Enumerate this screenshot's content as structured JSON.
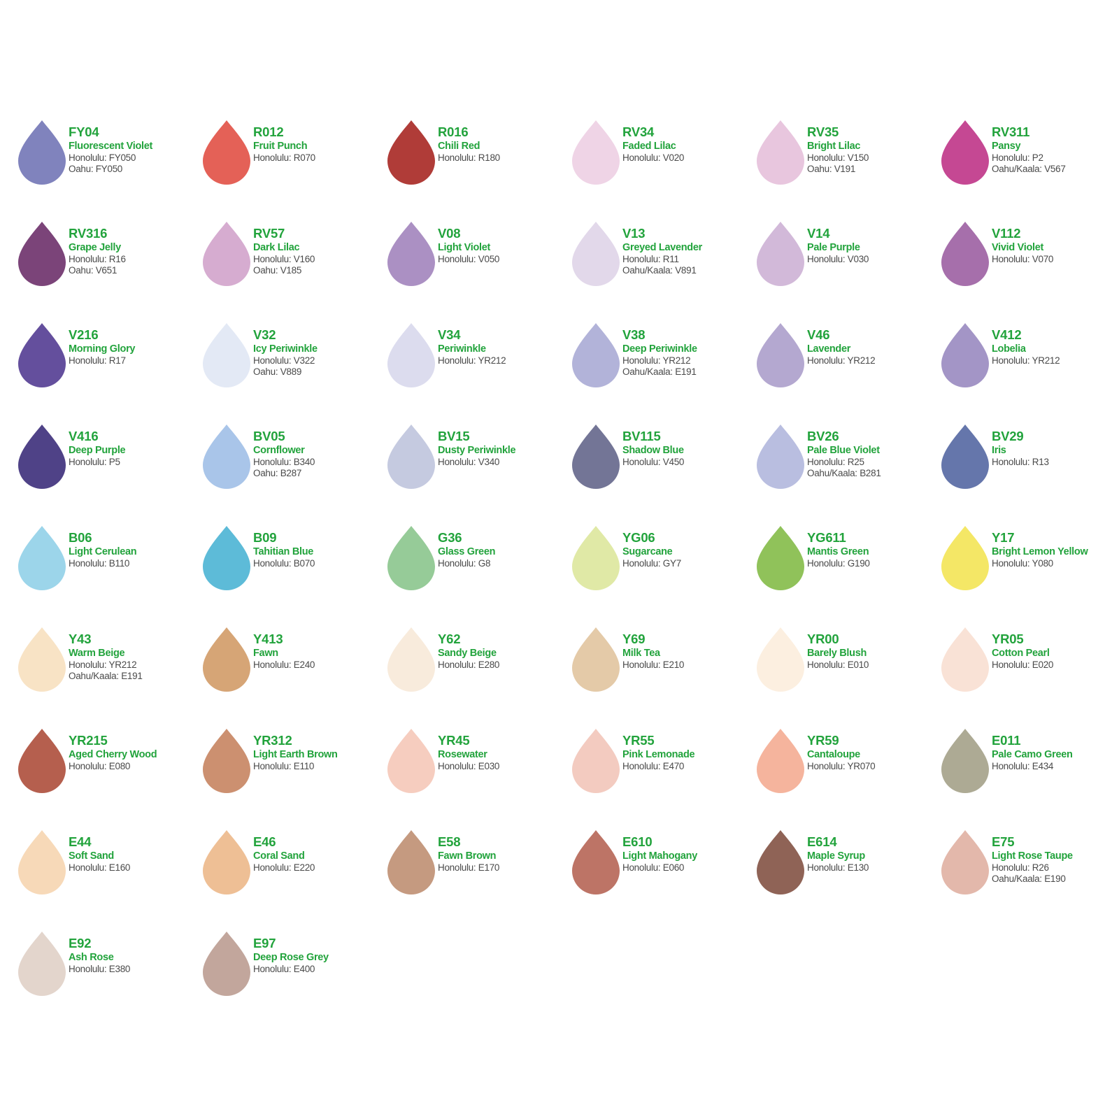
{
  "swatches": [
    {
      "code": "FY04",
      "name": "Fluorescent Violet",
      "refs": [
        "Honolulu: FY050",
        "Oahu: FY050"
      ],
      "color": "#8083bd"
    },
    {
      "code": "R012",
      "name": "Fruit Punch",
      "refs": [
        "Honolulu: R070"
      ],
      "color": "#e46157"
    },
    {
      "code": "R016",
      "name": "Chili Red",
      "refs": [
        "Honolulu: R180"
      ],
      "color": "#b03c38"
    },
    {
      "code": "RV34",
      "name": "Faded Lilac",
      "refs": [
        "Honolulu: V020"
      ],
      "color": "#efd4e6"
    },
    {
      "code": "RV35",
      "name": "Bright Lilac",
      "refs": [
        "Honolulu: V150",
        "Oahu: V191"
      ],
      "color": "#e8c6de"
    },
    {
      "code": "RV311",
      "name": "Pansy",
      "refs": [
        "Honolulu: P2",
        "Oahu/Kaala: V567"
      ],
      "color": "#c54893"
    },
    {
      "code": "RV316",
      "name": "Grape Jelly",
      "refs": [
        "Honolulu: R16",
        "Oahu: V651"
      ],
      "color": "#7b4479"
    },
    {
      "code": "RV57",
      "name": "Dark Lilac",
      "refs": [
        "Honolulu: V160",
        "Oahu: V185"
      ],
      "color": "#d6acd0"
    },
    {
      "code": "V08",
      "name": "Light Violet",
      "refs": [
        "Honolulu: V050"
      ],
      "color": "#ab90c3"
    },
    {
      "code": "V13",
      "name": "Greyed Lavender",
      "refs": [
        "Honolulu: R11",
        "Oahu/Kaala: V891"
      ],
      "color": "#e2d8ea"
    },
    {
      "code": "V14",
      "name": "Pale Purple",
      "refs": [
        "Honolulu: V030"
      ],
      "color": "#d2b9d9"
    },
    {
      "code": "V112",
      "name": "Vivid Violet",
      "refs": [
        "Honolulu: V070"
      ],
      "color": "#a66fab"
    },
    {
      "code": "V216",
      "name": "Morning Glory",
      "refs": [
        "Honolulu: R17"
      ],
      "color": "#644f9d"
    },
    {
      "code": "V32",
      "name": "Icy Periwinkle",
      "refs": [
        "Honolulu: V322",
        "Oahu: V889"
      ],
      "color": "#e3e9f5"
    },
    {
      "code": "V34",
      "name": "Periwinkle",
      "refs": [
        "Honolulu: YR212"
      ],
      "color": "#dcdcee"
    },
    {
      "code": "V38",
      "name": "Deep Periwinkle",
      "refs": [
        "Honolulu: YR212",
        "Oahu/Kaala: E191"
      ],
      "color": "#b2b3d9"
    },
    {
      "code": "V46",
      "name": "Lavender",
      "refs": [
        "Honolulu: YR212"
      ],
      "color": "#b4a8d0"
    },
    {
      "code": "V412",
      "name": "Lobelia",
      "refs": [
        "Honolulu: YR212"
      ],
      "color": "#a395c6"
    },
    {
      "code": "V416",
      "name": "Deep Purple",
      "refs": [
        "Honolulu: P5"
      ],
      "color": "#4f4287"
    },
    {
      "code": "BV05",
      "name": "Cornflower",
      "refs": [
        "Honolulu: B340",
        "Oahu: B287"
      ],
      "color": "#a9c5e9"
    },
    {
      "code": "BV15",
      "name": "Dusty Periwinkle",
      "refs": [
        "Honolulu: V340"
      ],
      "color": "#c5cae0"
    },
    {
      "code": "BV115",
      "name": "Shadow Blue",
      "refs": [
        "Honolulu: V450"
      ],
      "color": "#737596"
    },
    {
      "code": "BV26",
      "name": "Pale Blue Violet",
      "refs": [
        "Honolulu: R25",
        "Oahu/Kaala: B281"
      ],
      "color": "#b9bee0"
    },
    {
      "code": "BV29",
      "name": "Iris",
      "refs": [
        "Honolulu: R13"
      ],
      "color": "#6576ab"
    },
    {
      "code": "B06",
      "name": "Light Cerulean",
      "refs": [
        "Honolulu: B110"
      ],
      "color": "#9cd5ea"
    },
    {
      "code": "B09",
      "name": "Tahitian Blue",
      "refs": [
        "Honolulu: B070"
      ],
      "color": "#5dbbd8"
    },
    {
      "code": "G36",
      "name": "Glass Green",
      "refs": [
        "Honolulu: G8"
      ],
      "color": "#96cb98"
    },
    {
      "code": "YG06",
      "name": "Sugarcane",
      "refs": [
        "Honolulu: GY7"
      ],
      "color": "#e0e9a6"
    },
    {
      "code": "YG611",
      "name": "Mantis Green",
      "refs": [
        "Honolulu: G190"
      ],
      "color": "#90c25a"
    },
    {
      "code": "Y17",
      "name": "Bright Lemon Yellow",
      "refs": [
        "Honolulu: Y080"
      ],
      "color": "#f4e766"
    },
    {
      "code": "Y43",
      "name": "Warm Beige",
      "refs": [
        "Honolulu: YR212",
        "Oahu/Kaala: E191"
      ],
      "color": "#f8e3c5"
    },
    {
      "code": "Y413",
      "name": "Fawn",
      "refs": [
        "Honolulu: E240"
      ],
      "color": "#d6a576"
    },
    {
      "code": "Y62",
      "name": "Sandy Beige",
      "refs": [
        "Honolulu: E280"
      ],
      "color": "#f8ebdc"
    },
    {
      "code": "Y69",
      "name": "Milk Tea",
      "refs": [
        "Honolulu: E210"
      ],
      "color": "#e4caa8"
    },
    {
      "code": "YR00",
      "name": "Barely Blush",
      "refs": [
        "Honolulu: E010"
      ],
      "color": "#fcefe0"
    },
    {
      "code": "YR05",
      "name": "Cotton Pearl",
      "refs": [
        "Honolulu: E020"
      ],
      "color": "#f9e2d6"
    },
    {
      "code": "YR215",
      "name": "Aged Cherry Wood",
      "refs": [
        "Honolulu: E080"
      ],
      "color": "#b55f4e"
    },
    {
      "code": "YR312",
      "name": "Light Earth Brown",
      "refs": [
        "Honolulu: E110"
      ],
      "color": "#cc9070"
    },
    {
      "code": "YR45",
      "name": "Rosewater",
      "refs": [
        "Honolulu: E030"
      ],
      "color": "#f6cdbf"
    },
    {
      "code": "YR55",
      "name": "Pink Lemonade",
      "refs": [
        "Honolulu: E470"
      ],
      "color": "#f3cbc0"
    },
    {
      "code": "YR59",
      "name": "Cantaloupe",
      "refs": [
        "Honolulu: YR070"
      ],
      "color": "#f5b49d"
    },
    {
      "code": "E011",
      "name": "Pale Camo Green",
      "refs": [
        "Honolulu: E434"
      ],
      "color": "#adaa94"
    },
    {
      "code": "E44",
      "name": "Soft Sand",
      "refs": [
        "Honolulu: E160"
      ],
      "color": "#f7d9b8"
    },
    {
      "code": "E46",
      "name": "Coral Sand",
      "refs": [
        "Honolulu: E220"
      ],
      "color": "#eebf95"
    },
    {
      "code": "E58",
      "name": "Fawn Brown",
      "refs": [
        "Honolulu: E170"
      ],
      "color": "#c59a80"
    },
    {
      "code": "E610",
      "name": "Light Mahogany",
      "refs": [
        "Honolulu: E060"
      ],
      "color": "#bd7466"
    },
    {
      "code": "E614",
      "name": "Maple Syrup",
      "refs": [
        "Honolulu: E130"
      ],
      "color": "#8f6356"
    },
    {
      "code": "E75",
      "name": "Light Rose Taupe",
      "refs": [
        "Honolulu: R26",
        "Oahu/Kaala: E190"
      ],
      "color": "#e3b8ab"
    },
    {
      "code": "E92",
      "name": "Ash Rose",
      "refs": [
        "Honolulu: E380"
      ],
      "color": "#e3d5cc"
    },
    {
      "code": "E97",
      "name": "Deep Rose Grey",
      "refs": [
        "Honolulu: E400"
      ],
      "color": "#c2a69c"
    }
  ]
}
